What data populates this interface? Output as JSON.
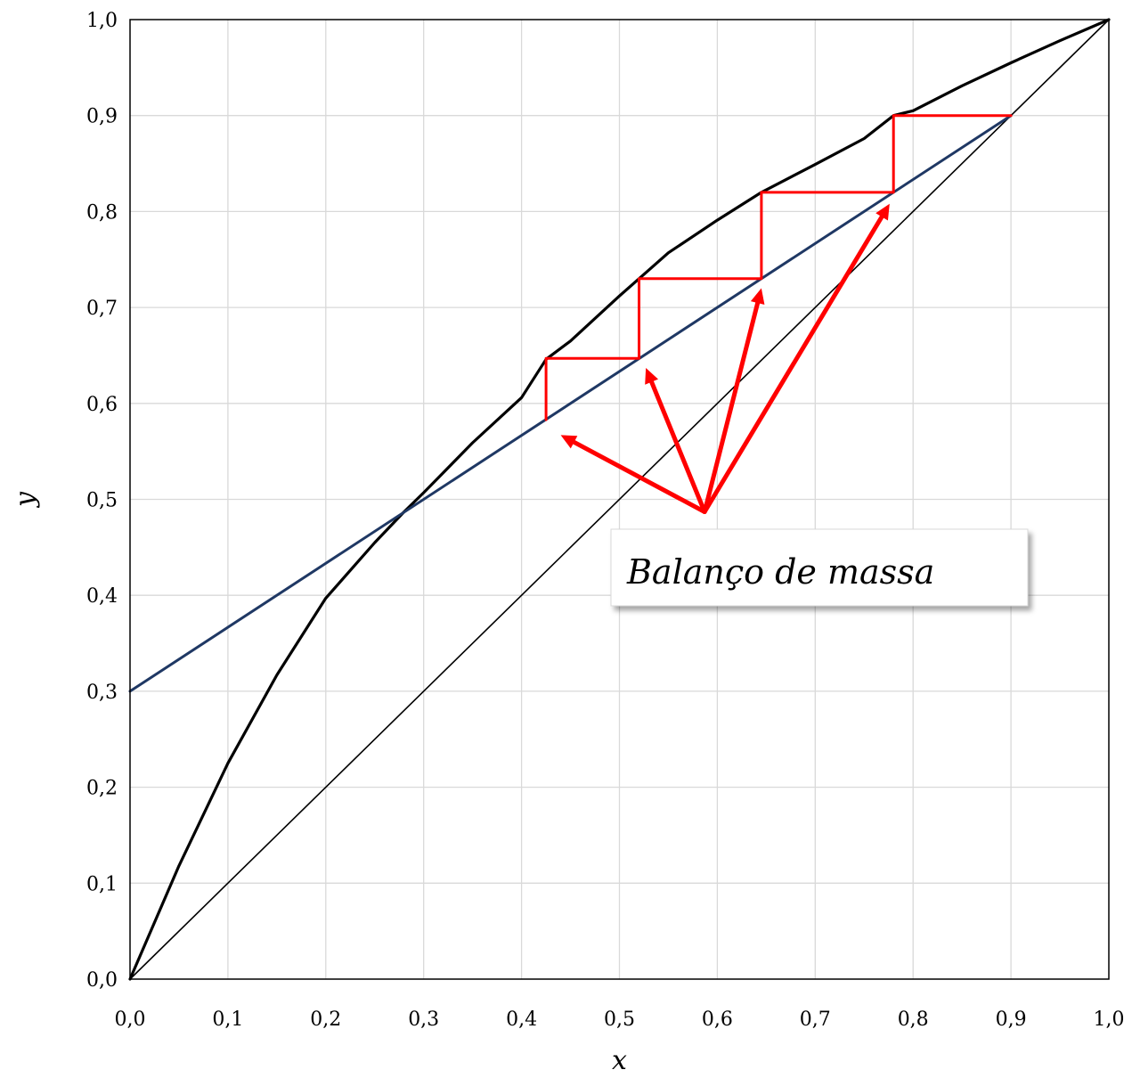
{
  "chart_data": {
    "type": "line",
    "xlabel": "x",
    "ylabel": "y",
    "xlim": [
      0,
      1
    ],
    "ylim": [
      0,
      1
    ],
    "x_ticks": [
      "0,0",
      "0,1",
      "0,2",
      "0,3",
      "0,4",
      "0,5",
      "0,6",
      "0,7",
      "0,8",
      "0,9",
      "1,0"
    ],
    "y_ticks": [
      "0,0",
      "0,1",
      "0,2",
      "0,3",
      "0,4",
      "0,5",
      "0,6",
      "0,7",
      "0,8",
      "0,9",
      "1,0"
    ],
    "grid": true,
    "colors": {
      "equilibrium": "#000000",
      "diagonal": "#000000",
      "operating_line": "#1f3864",
      "stages": "#ff0000",
      "arrows": "#ff0000",
      "grid": "#d9d9d9"
    },
    "series": [
      {
        "x": [
          0,
          0.05,
          0.1,
          0.15,
          0.2,
          0.25,
          0.28,
          0.3,
          0.35,
          0.4,
          0.425,
          0.45,
          0.5,
          0.52,
          0.55,
          0.6,
          0.645,
          0.7,
          0.75,
          0.78,
          0.8,
          0.85,
          0.9,
          0.95,
          1.0
        ],
        "y": [
          0,
          0.118,
          0.225,
          0.317,
          0.397,
          0.455,
          0.487,
          0.507,
          0.559,
          0.606,
          0.646,
          0.665,
          0.712,
          0.73,
          0.757,
          0.791,
          0.82,
          0.849,
          0.876,
          0.9,
          0.905,
          0.931,
          0.955,
          0.978,
          1.0
        ]
      },
      {
        "x": [
          0,
          1
        ],
        "y": [
          0,
          1
        ]
      },
      {
        "x": [
          0,
          0.9
        ],
        "y": [
          0.3,
          0.9
        ]
      },
      {
        "x": [
          0.9,
          0.78,
          0.78,
          0.645,
          0.645,
          0.52,
          0.52,
          0.425,
          0.425
        ],
        "y": [
          0.9,
          0.9,
          0.82,
          0.82,
          0.73,
          0.73,
          0.647,
          0.647,
          0.583
        ]
      }
    ],
    "annotation": {
      "text": "Balanço de massa",
      "source": [
        0.587,
        0.487
      ],
      "targets": [
        [
          0.44,
          0.567
        ],
        [
          0.527,
          0.637
        ],
        [
          0.645,
          0.72
        ],
        [
          0.776,
          0.808
        ]
      ]
    }
  }
}
